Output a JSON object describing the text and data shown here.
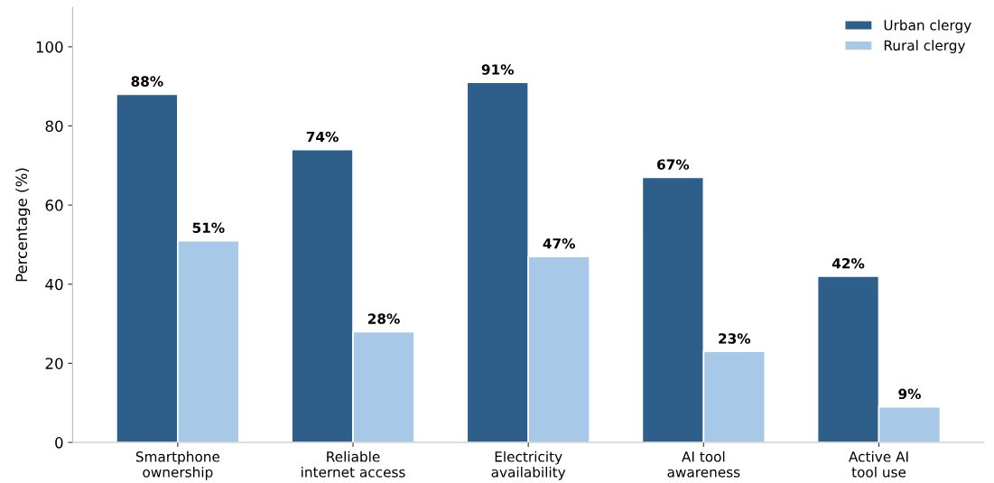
{
  "chart_data": {
    "type": "bar",
    "ylabel": "Percentage (%)",
    "categories": [
      "Smartphone\nownership",
      "Reliable\ninternet access",
      "Electricity\navailability",
      "AI tool\nawareness",
      "Active AI\ntool use"
    ],
    "series": [
      {
        "name": "Urban clergy",
        "color": "#2e5f8a",
        "values": [
          88,
          74,
          91,
          67,
          42
        ],
        "value_labels": [
          "88%",
          "74%",
          "91%",
          "67%",
          "42%"
        ]
      },
      {
        "name": "Rural clergy",
        "color": "#a8c8e8",
        "values": [
          51,
          28,
          47,
          23,
          9
        ],
        "value_labels": [
          "51%",
          "28%",
          "47%",
          "23%",
          "9%"
        ]
      }
    ],
    "ylim": [
      0,
      110
    ],
    "yticks": [
      0,
      20,
      40,
      60,
      80,
      100
    ],
    "grid": false,
    "legend": "top right"
  }
}
